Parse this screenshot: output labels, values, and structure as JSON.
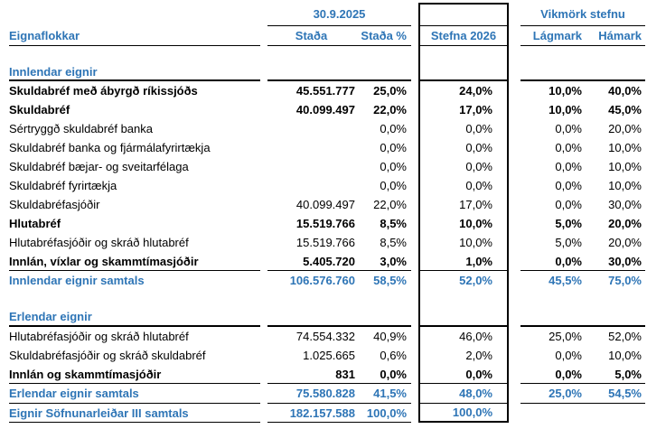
{
  "header": {
    "date": "30.9.2025",
    "category_col": "Eignaflokkar",
    "stada": "Staða",
    "stada_pct": "Staða %",
    "stefna": "Stefna 2026",
    "vikmork_group": "Vikmörk stefnu",
    "lagmark": "Lágmark",
    "hamark": "Hámark"
  },
  "colors": {
    "accent_blue": "#2E75B6",
    "rule_black": "#000000"
  },
  "rows": [
    {
      "label": "Innlendar eignir"
    },
    {
      "label": "Skuldabréf með ábyrgð ríkissjóðs",
      "stada": "45.551.777",
      "pct": "25,0%",
      "stefna": "24,0%",
      "lagmark": "10,0%",
      "hamark": "40,0%"
    },
    {
      "label": "Skuldabréf",
      "stada": "40.099.497",
      "pct": "22,0%",
      "stefna": "17,0%",
      "lagmark": "10,0%",
      "hamark": "45,0%"
    },
    {
      "label": "Sértryggð skuldabréf banka",
      "pct": "0,0%",
      "stefna": "0,0%",
      "lagmark": "0,0%",
      "hamark": "20,0%"
    },
    {
      "label": "Skuldabréf banka og fjármálafyrirtækja",
      "pct": "0,0%",
      "stefna": "0,0%",
      "lagmark": "0,0%",
      "hamark": "10,0%"
    },
    {
      "label": "Skuldabréf bæjar- og sveitarfélaga",
      "pct": "0,0%",
      "stefna": "0,0%",
      "lagmark": "0,0%",
      "hamark": "10,0%"
    },
    {
      "label": "Skuldabréf fyrirtækja",
      "pct": "0,0%",
      "stefna": "0,0%",
      "lagmark": "0,0%",
      "hamark": "10,0%"
    },
    {
      "label": "Skuldabréfasjóðir",
      "stada": "40.099.497",
      "pct": "22,0%",
      "stefna": "17,0%",
      "lagmark": "0,0%",
      "hamark": "30,0%"
    },
    {
      "label": "Hlutabréf",
      "stada": "15.519.766",
      "pct": "8,5%",
      "stefna": "10,0%",
      "lagmark": "5,0%",
      "hamark": "20,0%"
    },
    {
      "label": "Hlutabréfasjóðir og skráð hlutabréf",
      "stada": "15.519.766",
      "pct": "8,5%",
      "stefna": "10,0%",
      "lagmark": "5,0%",
      "hamark": "20,0%"
    },
    {
      "label": "Innlán, víxlar og skammtímasjóðir",
      "stada": "5.405.720",
      "pct": "3,0%",
      "stefna": "1,0%",
      "lagmark": "0,0%",
      "hamark": "30,0%"
    },
    {
      "label": "Innlendar eignir samtals",
      "stada": "106.576.760",
      "pct": "58,5%",
      "stefna": "52,0%",
      "lagmark": "45,5%",
      "hamark": "75,0%"
    },
    {
      "label": "Erlendar eignir"
    },
    {
      "label": "Hlutabréfasjóðir og skráð hlutabréf",
      "stada": "74.554.332",
      "pct": "40,9%",
      "stefna": "46,0%",
      "lagmark": "25,0%",
      "hamark": "52,0%"
    },
    {
      "label": "Skuldabréfasjóðir og skráð skuldabréf",
      "stada": "1.025.665",
      "pct": "0,6%",
      "stefna": "2,0%",
      "lagmark": "0,0%",
      "hamark": "10,0%"
    },
    {
      "label": "Innlán og skammtímasjóðir",
      "stada": "831",
      "pct": "0,0%",
      "stefna": "0,0%",
      "lagmark": "0,0%",
      "hamark": "5,0%"
    },
    {
      "label": "Erlendar eignir samtals",
      "stada": "75.580.828",
      "pct": "41,5%",
      "stefna": "48,0%",
      "lagmark": "25,0%",
      "hamark": "54,5%"
    },
    {
      "label": "Eignir Söfnunarleiðar III samtals",
      "stada": "182.157.588",
      "pct": "100,0%",
      "stefna": "100,0%"
    }
  ]
}
